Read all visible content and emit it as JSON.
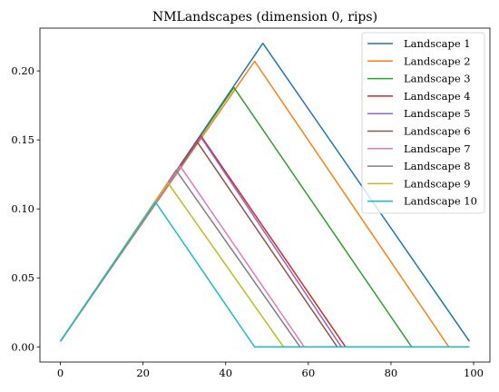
{
  "chart_data": {
    "type": "line",
    "title": "NMLandscapes (dimension 0, rips)",
    "xlabel": "",
    "ylabel": "",
    "xlim": [
      -4.95,
      103.95
    ],
    "ylim": [
      -0.011,
      0.231
    ],
    "x_ticks": [
      0,
      20,
      40,
      60,
      80,
      100
    ],
    "x_tick_labels": [
      "0",
      "20",
      "40",
      "60",
      "80",
      "100"
    ],
    "y_ticks": [
      0.0,
      0.05,
      0.1,
      0.15,
      0.2
    ],
    "y_tick_labels": [
      "0.00",
      "0.05",
      "0.10",
      "0.15",
      "0.20"
    ],
    "grid": false,
    "legend_position": "top-right",
    "series": [
      {
        "name": "Landscape 1",
        "color": "#1f77b4",
        "points": [
          [
            0,
            0.004
          ],
          [
            49,
            0.22
          ],
          [
            99,
            0.004
          ]
        ]
      },
      {
        "name": "Landscape 2",
        "color": "#ff7f0e",
        "points": [
          [
            0,
            0.004
          ],
          [
            47,
            0.207
          ],
          [
            94,
            0.0
          ]
        ]
      },
      {
        "name": "Landscape 3",
        "color": "#2ca02c",
        "points": [
          [
            0,
            0.004
          ],
          [
            42,
            0.188
          ],
          [
            85,
            0.0
          ],
          [
            99,
            0.0
          ]
        ]
      },
      {
        "name": "Landscape 4",
        "color": "#d62728",
        "points": [
          [
            0,
            0.004
          ],
          [
            34,
            0.153
          ],
          [
            69,
            0.0
          ],
          [
            99,
            0.0
          ]
        ]
      },
      {
        "name": "Landscape 5",
        "color": "#9467bd",
        "points": [
          [
            0,
            0.004
          ],
          [
            34,
            0.152
          ],
          [
            68,
            0.0
          ],
          [
            99,
            0.0
          ]
        ]
      },
      {
        "name": "Landscape 6",
        "color": "#8c564b",
        "points": [
          [
            0,
            0.004
          ],
          [
            33,
            0.149
          ],
          [
            67,
            0.0
          ],
          [
            99,
            0.0
          ]
        ]
      },
      {
        "name": "Landscape 7",
        "color": "#e377c2",
        "points": [
          [
            0,
            0.004
          ],
          [
            29,
            0.131
          ],
          [
            59,
            0.0
          ],
          [
            99,
            0.0
          ]
        ]
      },
      {
        "name": "Landscape 8",
        "color": "#7f7f7f",
        "points": [
          [
            0,
            0.004
          ],
          [
            28,
            0.128
          ],
          [
            58,
            0.0
          ],
          [
            99,
            0.0
          ]
        ]
      },
      {
        "name": "Landscape 9",
        "color": "#bcbd22",
        "points": [
          [
            0,
            0.004
          ],
          [
            26,
            0.119
          ],
          [
            54,
            0.0
          ],
          [
            99,
            0.0
          ]
        ]
      },
      {
        "name": "Landscape 10",
        "color": "#17becf",
        "points": [
          [
            0,
            0.004
          ],
          [
            23,
            0.105
          ],
          [
            47,
            0.0
          ],
          [
            99,
            0.0
          ]
        ]
      }
    ]
  }
}
